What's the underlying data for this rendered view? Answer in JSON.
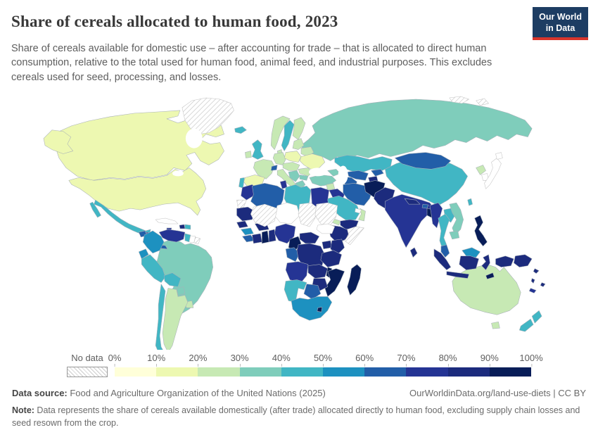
{
  "header": {
    "title": "Share of cereals allocated to human food, 2023",
    "subtitle": "Share of cereals available for domestic use – after accounting for trade – that is allocated to direct human consumption, relative to the total used for human food, animal feed, and industrial purposes. This excludes cereals used for seed, processing, and losses.",
    "logo_line1": "Our World",
    "logo_line2": "in Data",
    "logo_bg": "#1d3d63",
    "logo_accent": "#d8352c"
  },
  "legend": {
    "no_data_label": "No data",
    "ticks": [
      "0%",
      "10%",
      "20%",
      "30%",
      "40%",
      "50%",
      "60%",
      "70%",
      "80%",
      "90%",
      "100%"
    ],
    "colors": [
      "#ffffd9",
      "#edf8b1",
      "#c7e9b4",
      "#7fcdbb",
      "#41b6c4",
      "#1d91c0",
      "#225ea8",
      "#253494",
      "#1c2b7d",
      "#081d58"
    ]
  },
  "footer": {
    "source_label": "Data source:",
    "source_text": " Food and Agriculture Organization of the United Nations (2025)",
    "url_text": "OurWorldinData.org/land-use-diets | CC BY",
    "note_label": "Note:",
    "note_text": " Data represents the share of cereals available domestically (after trade) allocated directly to human food, excluding supply chain losses and seed resown from the crop."
  },
  "chart_data": {
    "type": "choropleth-map",
    "title": "Share of cereals allocated to human food, 2023",
    "unit": "%",
    "scale": {
      "min": 0,
      "max": 100,
      "bucket_size": 10,
      "palette": "YlGnBu"
    },
    "regions": {
      "greenland": {
        "name": "Greenland",
        "share": "No data"
      },
      "arctic-islands": {
        "name": "Arctic islands",
        "share": "No data"
      },
      "canada": {
        "name": "Canada",
        "share": "10-20%"
      },
      "usa": {
        "name": "United States",
        "share": "10-20%"
      },
      "mexico": {
        "name": "Mexico",
        "share": "40-50%"
      },
      "guatemala": {
        "name": "Guatemala",
        "share": "60-70%"
      },
      "honduras": {
        "name": "Honduras",
        "share": "70-80%"
      },
      "nicaragua": {
        "name": "Nicaragua",
        "share": "70-80%"
      },
      "costa-rica": {
        "name": "Costa Rica",
        "share": "50-60%"
      },
      "panama": {
        "name": "Panama",
        "share": "60-70%"
      },
      "cuba": {
        "name": "Cuba",
        "share": "No data",
        "plain": true
      },
      "jamaica": {
        "name": "Jamaica",
        "share": "70-80%"
      },
      "haiti": {
        "name": "Haiti",
        "share": "80-90%"
      },
      "dominican-republic": {
        "name": "Dominican Republic",
        "share": "40-50%"
      },
      "colombia": {
        "name": "Colombia",
        "share": "50-60%"
      },
      "venezuela": {
        "name": "Venezuela",
        "share": "70-80%"
      },
      "guyana": {
        "name": "Guyana",
        "share": "40-50%"
      },
      "suriname": {
        "name": "Suriname",
        "share": "No data",
        "plain": true
      },
      "french-guiana": {
        "name": "French Guiana",
        "share": "No data"
      },
      "ecuador": {
        "name": "Ecuador",
        "share": "50-60%"
      },
      "peru": {
        "name": "Peru",
        "share": "40-50%"
      },
      "brazil": {
        "name": "Brazil",
        "share": "30-40%"
      },
      "bolivia": {
        "name": "Bolivia",
        "share": "40-50%"
      },
      "paraguay": {
        "name": "Paraguay",
        "share": "30-40%"
      },
      "chile": {
        "name": "Chile",
        "share": "40-50%"
      },
      "argentina": {
        "name": "Argentina",
        "share": "20-30%"
      },
      "uruguay": {
        "name": "Uruguay",
        "share": "20-30%"
      },
      "iceland": {
        "name": "Iceland",
        "share": "40-50%"
      },
      "norway": {
        "name": "Norway",
        "share": "20-30%"
      },
      "sweden": {
        "name": "Sweden",
        "share": "40-50%"
      },
      "finland": {
        "name": "Finland",
        "share": "20-30%"
      },
      "denmark": {
        "name": "Denmark",
        "share": "20-30%"
      },
      "uk": {
        "name": "United Kingdom",
        "share": "40-50%"
      },
      "ireland": {
        "name": "Ireland",
        "share": "20-30%"
      },
      "france": {
        "name": "France",
        "share": "20-30%"
      },
      "spain": {
        "name": "Spain",
        "share": "10-20%"
      },
      "portugal": {
        "name": "Portugal",
        "share": "40-50%"
      },
      "germany": {
        "name": "Germany",
        "share": "20-30%"
      },
      "central-europe": {
        "name": "Central Europe",
        "share": "20-30%"
      },
      "switzerland": {
        "name": "Switzerland",
        "share": "60-70%"
      },
      "italy": {
        "name": "Italy",
        "share": "20-30%"
      },
      "poland": {
        "name": "Poland",
        "share": "10-20%"
      },
      "baltic-states": {
        "name": "Baltic states",
        "share": "20-30%"
      },
      "belarus": {
        "name": "Belarus",
        "share": "20-30%"
      },
      "ukraine": {
        "name": "Ukraine",
        "share": "10-20%"
      },
      "romania": {
        "name": "Romania",
        "share": "20-30%"
      },
      "balkans": {
        "name": "Balkans",
        "share": "30-40%"
      },
      "greece": {
        "name": "Greece",
        "share": "30-40%"
      },
      "bulgaria": {
        "name": "Bulgaria",
        "share": "30-40%"
      },
      "russia": {
        "name": "Russia",
        "share": "30-40%"
      },
      "turkey": {
        "name": "Turkey",
        "share": "30-40%"
      },
      "caucasus": {
        "name": "Caucasus",
        "share": "30-40%"
      },
      "syria": {
        "name": "Syria",
        "share": "20-30%"
      },
      "iraq": {
        "name": "Iraq",
        "share": "70-80%"
      },
      "iran": {
        "name": "Iran",
        "share": "60-70%"
      },
      "israel-lebanon": {
        "name": "Israel and Lebanon",
        "share": "20-30%"
      },
      "saudi-arabia": {
        "name": "Saudi Arabia",
        "share": "40-50%"
      },
      "yemen": {
        "name": "Yemen",
        "share": "80-90%"
      },
      "oman": {
        "name": "Oman",
        "share": "20-30%"
      },
      "uae": {
        "name": "United Arab Emirates",
        "share": "No data",
        "plain": true
      },
      "morocco": {
        "name": "Morocco",
        "share": "70-80%"
      },
      "western-sahara": {
        "name": "Western Sahara",
        "share": "No data"
      },
      "algeria": {
        "name": "Algeria",
        "share": "60-70%"
      },
      "tunisia": {
        "name": "Tunisia",
        "share": "70-80%"
      },
      "libya": {
        "name": "Libya",
        "share": "40-50%"
      },
      "egypt": {
        "name": "Egypt",
        "share": "70-80%"
      },
      "mauritania": {
        "name": "Mauritania",
        "share": "80-90%"
      },
      "mali": {
        "name": "Mali",
        "share": "No data"
      },
      "niger": {
        "name": "Niger",
        "share": "No data",
        "plain": true
      },
      "chad": {
        "name": "Chad",
        "share": "No data"
      },
      "sudan": {
        "name": "Sudan",
        "share": "No data"
      },
      "south-sudan": {
        "name": "South Sudan",
        "share": "No data",
        "plain": true
      },
      "eritrea": {
        "name": "Eritrea",
        "share": "20-30%"
      },
      "ethiopia": {
        "name": "Ethiopia",
        "share": "80-90%"
      },
      "somalia": {
        "name": "Somalia",
        "share": "No data"
      },
      "senegal": {
        "name": "Senegal",
        "share": "80-90%"
      },
      "guinea": {
        "name": "Guinea",
        "share": "50-60%"
      },
      "sierra-leone-liberia": {
        "name": "Sierra Leone and Liberia",
        "share": "60-70%"
      },
      "ivory-coast": {
        "name": "Cote d'Ivoire",
        "share": "80-90%"
      },
      "burkina-faso": {
        "name": "Burkina Faso",
        "share": "80-90%"
      },
      "ghana": {
        "name": "Ghana",
        "share": "90-100%"
      },
      "togo-benin": {
        "name": "Togo and Benin",
        "share": "80-90%"
      },
      "nigeria": {
        "name": "Nigeria",
        "share": "70-80%"
      },
      "cameroon": {
        "name": "Cameroon",
        "share": "90-100%"
      },
      "central-african-republic": {
        "name": "Central African Republic",
        "share": "80-90%"
      },
      "gabon-congo": {
        "name": "Gabon and Congo",
        "share": "60-70%"
      },
      "drc": {
        "name": "Democratic Republic of Congo",
        "share": "80-90%"
      },
      "uganda": {
        "name": "Uganda",
        "share": "80-90%"
      },
      "kenya": {
        "name": "Kenya",
        "share": "80-90%"
      },
      "tanzania": {
        "name": "Tanzania",
        "share": "80-90%"
      },
      "angola": {
        "name": "Angola",
        "share": "70-80%"
      },
      "zambia": {
        "name": "Zambia",
        "share": "80-90%"
      },
      "malawi": {
        "name": "Malawi",
        "share": "90-100%"
      },
      "mozambique": {
        "name": "Mozambique",
        "share": "90-100%"
      },
      "zimbabwe": {
        "name": "Zimbabwe",
        "share": "80-90%"
      },
      "namibia": {
        "name": "Namibia",
        "share": "40-50%"
      },
      "botswana": {
        "name": "Botswana",
        "share": "60-70%"
      },
      "south-africa": {
        "name": "South Africa",
        "share": "50-60%"
      },
      "lesotho": {
        "name": "Lesotho",
        "share": "90-100%"
      },
      "madagascar": {
        "name": "Madagascar",
        "share": "90-100%"
      },
      "kazakhstan": {
        "name": "Kazakhstan",
        "share": "40-50%"
      },
      "uzbekistan": {
        "name": "Uzbekistan",
        "share": "60-70%"
      },
      "turkmenistan": {
        "name": "Turkmenistan",
        "share": "60-70%"
      },
      "kyrgyzstan": {
        "name": "Kyrgyzstan",
        "share": "60-70%"
      },
      "tajikistan": {
        "name": "Tajikistan",
        "share": "80-90%"
      },
      "afghanistan": {
        "name": "Afghanistan",
        "share": "90-100%"
      },
      "pakistan": {
        "name": "Pakistan",
        "share": "80-90%"
      },
      "india": {
        "name": "India",
        "share": "70-80%"
      },
      "nepal": {
        "name": "Nepal",
        "share": "80-90%"
      },
      "bhutan": {
        "name": "Bhutan",
        "share": "60-70%"
      },
      "bangladesh": {
        "name": "Bangladesh",
        "share": "90-100%"
      },
      "sri-lanka": {
        "name": "Sri Lanka",
        "share": "80-90%"
      },
      "china": {
        "name": "China",
        "share": "40-50%"
      },
      "mongolia": {
        "name": "Mongolia",
        "share": "60-70%"
      },
      "north-korea": {
        "name": "North Korea",
        "share": "20-30%"
      },
      "south-korea": {
        "name": "South Korea",
        "share": "No data",
        "plain": true
      },
      "japan": {
        "name": "Japan",
        "share": "No data",
        "plain": true
      },
      "taiwan": {
        "name": "Taiwan",
        "share": "40-50%"
      },
      "myanmar": {
        "name": "Myanmar",
        "share": "70-80%"
      },
      "thailand": {
        "name": "Thailand",
        "share": "40-50%"
      },
      "laos": {
        "name": "Laos",
        "share": "40-50%"
      },
      "vietnam": {
        "name": "Vietnam",
        "share": "30-40%"
      },
      "cambodia": {
        "name": "Cambodia",
        "share": "30-40%"
      },
      "malaysia": {
        "name": "Malaysia",
        "share": "60-70%"
      },
      "malaysia-borneo": {
        "name": "Malaysia (Borneo)",
        "share": "50-60%"
      },
      "indonesia": {
        "name": "Indonesia",
        "share": "80-90%"
      },
      "timor-leste": {
        "name": "Timor-Leste",
        "share": "90-100%"
      },
      "philippines": {
        "name": "Philippines",
        "share": "90-100%"
      },
      "papua-new-guinea": {
        "name": "Papua New Guinea",
        "share": "80-90%"
      },
      "solomon-islands": {
        "name": "Solomon Islands",
        "share": "80-90%"
      },
      "vanuatu": {
        "name": "Vanuatu",
        "share": "80-90%"
      },
      "fiji": {
        "name": "Fiji",
        "share": "80-90%"
      },
      "new-caledonia": {
        "name": "New Caledonia",
        "share": "70-80%"
      },
      "australia": {
        "name": "Australia",
        "share": "20-30%"
      },
      "new-zealand": {
        "name": "New Zealand",
        "share": "40-50%"
      }
    }
  }
}
